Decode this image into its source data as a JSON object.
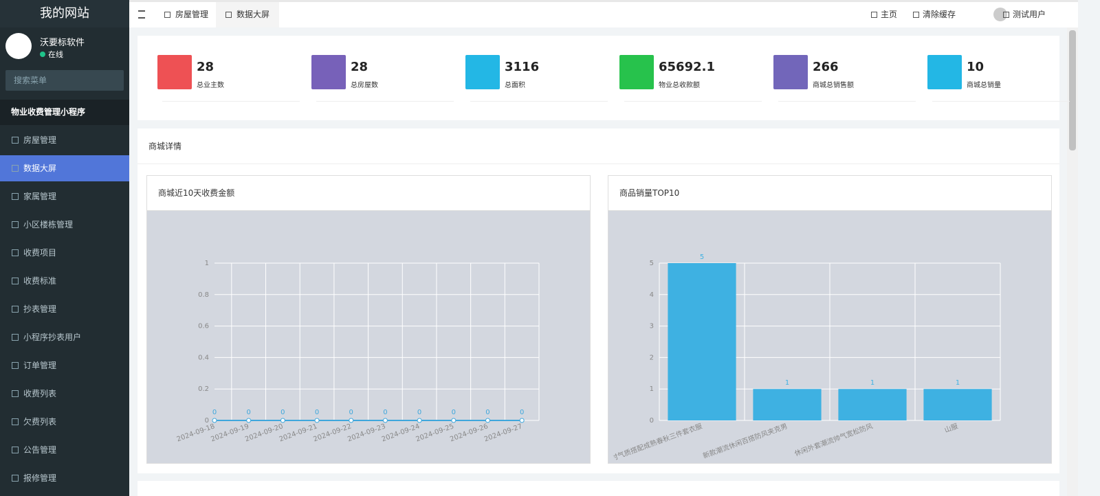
{
  "sidebar": {
    "brand": "我的网站",
    "user": {
      "name": "沃要标软件",
      "status": "在线"
    },
    "search_placeholder": "搜索菜单",
    "group": "物业收费管理小程序",
    "menu": [
      "房屋管理",
      "数据大屏",
      "家属管理",
      "小区楼栋管理",
      "收费项目",
      "收费标准",
      "抄表管理",
      "小程序抄表用户",
      "订单管理",
      "收费列表",
      "欠费列表",
      "公告管理",
      "报修管理"
    ],
    "active": 1
  },
  "header": {
    "tabs": [
      "房屋管理",
      "数据大屏"
    ],
    "active_tab": 1,
    "links": [
      "主页",
      "清除缓存"
    ],
    "user": "测试用户"
  },
  "stats": [
    {
      "value": "28",
      "label": "总业主数",
      "color": "#ee5154"
    },
    {
      "value": "28",
      "label": "总房屋数",
      "color": "#7761b9"
    },
    {
      "value": "3116",
      "label": "总面积",
      "color": "#23b7e5"
    },
    {
      "value": "65692.1",
      "label": "物业总收款额",
      "color": "#27c24c"
    },
    {
      "value": "266",
      "label": "商城总销售额",
      "color": "#7266ba"
    },
    {
      "value": "10",
      "label": "商城总销量",
      "color": "#23b7e5"
    }
  ],
  "section_title": "商城详情",
  "chart_data": [
    {
      "type": "line",
      "title": "商城近10天收费金额",
      "categories": [
        "2024-09-18",
        "2024-09-19",
        "2024-09-20",
        "2024-09-21",
        "2024-09-22",
        "2024-09-23",
        "2024-09-24",
        "2024-09-25",
        "2024-09-26",
        "2024-09-27"
      ],
      "values": [
        0,
        0,
        0,
        0,
        0,
        0,
        0,
        0,
        0,
        0
      ],
      "color": "#3fa7dc",
      "ylim": [
        0,
        1
      ],
      "yticks": [
        0,
        0.2,
        0.4,
        0.6,
        0.8,
        1
      ],
      "grid": true
    },
    {
      "type": "bar",
      "title": "商品销量TOP10",
      "categories": [
        "时气质搭配成熟春秋三件套衣服",
        "新款潮流休闲百搭防风夹克男",
        "休闲外套潮流帅气宽松防风",
        "山服"
      ],
      "values": [
        5,
        1,
        1,
        1
      ],
      "color": "#3eb1e2",
      "ylim": [
        0,
        5
      ],
      "yticks": [
        0,
        1,
        2,
        3,
        4,
        5
      ],
      "grid": true
    }
  ]
}
